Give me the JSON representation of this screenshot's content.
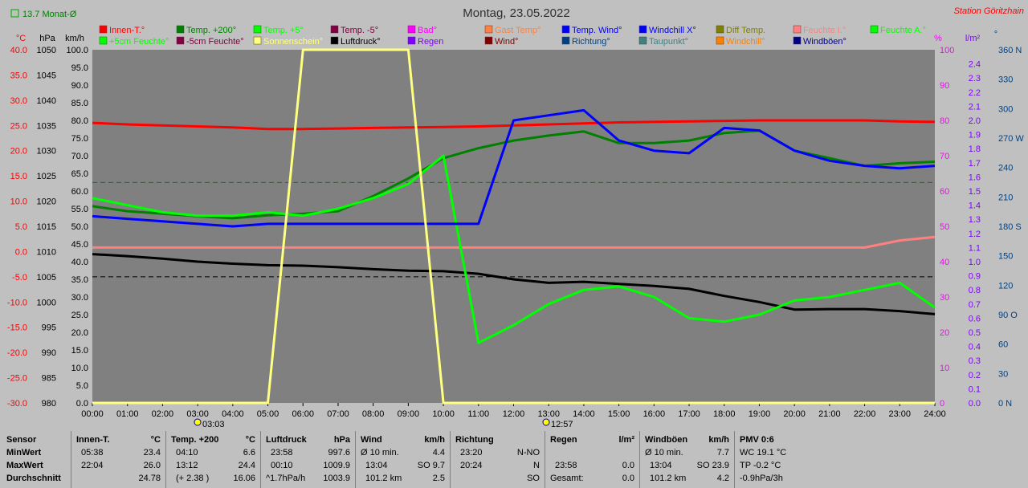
{
  "header": {
    "legend_small": "13.7 Monat-Ø",
    "date": "Montag, 23.05.2022",
    "station": "Station Göritzhain"
  },
  "colors": {
    "bg": "#c0c0c0",
    "plot_bg": "#808080",
    "innen": "#ff0000",
    "temp200": "#008000",
    "temp5": "#00ff00",
    "tempm5": "#800040",
    "bad": "#ff00ff",
    "gast": "#ff8040",
    "tempwind": "#0000ff",
    "windchillx": "#0000ff",
    "diff": "#808000",
    "feuchte_i": "#ff8080",
    "feuchte_a": "#00ff00",
    "sonne": "#ffff80",
    "luftdruck": "#000000",
    "regen": "#8000ff",
    "wind": "#800000",
    "richtung": "#004080",
    "taupunkt": "#408080",
    "windchill": "#ff8000",
    "windboeen": "#000080"
  },
  "legend": [
    {
      "label": "Innen-T.°",
      "color": "#ff0000"
    },
    {
      "label": "Temp. +200°",
      "color": "#008000"
    },
    {
      "label": "Temp. +5°",
      "color": "#00ff00"
    },
    {
      "label": "Temp. -5°",
      "color": "#800040"
    },
    {
      "label": "Bad°",
      "color": "#ff00ff"
    },
    {
      "label": "Gast Temp°",
      "color": "#ff8040"
    },
    {
      "label": "Temp. Wind°",
      "color": "#0000ff"
    },
    {
      "label": "Windchill X°",
      "color": "#0000ff"
    },
    {
      "label": "Diff Temp.",
      "color": "#808000"
    },
    {
      "label": "Feuchte I.°",
      "color": "#ff8080"
    },
    {
      "label": "Feuchte A.°",
      "color": "#00ff00"
    },
    {
      "label": "+5cm Feuchte°",
      "color": "#00ff00"
    },
    {
      "label": "-5cm Feuchte°",
      "color": "#800040"
    },
    {
      "label": "Sonnenschein°",
      "color": "#ffff80"
    },
    {
      "label": "Luftdruck°",
      "color": "#000000"
    },
    {
      "label": "Regen",
      "color": "#8000ff"
    },
    {
      "label": "Wind°",
      "color": "#800000"
    },
    {
      "label": "Richtung°",
      "color": "#004080"
    },
    {
      "label": "Taupunkt°",
      "color": "#408080"
    },
    {
      "label": "Windchill°",
      "color": "#ff8000"
    },
    {
      "label": "Windböen°",
      "color": "#000080"
    }
  ],
  "axes": {
    "temp": {
      "unit": "°C",
      "ticks": [
        "40.0",
        "35.0",
        "30.0",
        "25.0",
        "20.0",
        "15.0",
        "10.0",
        "5.0",
        "0.0",
        "-5.0",
        "-10.0",
        "-15.0",
        "-20.0",
        "-25.0",
        "-30.0"
      ]
    },
    "pressure": {
      "unit": "hPa",
      "ticks": [
        "1050",
        "1045",
        "1040",
        "1035",
        "1030",
        "1025",
        "1020",
        "1015",
        "1010",
        "1005",
        "1000",
        "995",
        "990",
        "985",
        "980"
      ]
    },
    "wind": {
      "unit": "km/h",
      "ticks": [
        "100.0",
        "95.0",
        "90.0",
        "85.0",
        "80.0",
        "75.0",
        "70.0",
        "65.0",
        "60.0",
        "55.0",
        "50.0",
        "45.0",
        "40.0",
        "35.0",
        "30.0",
        "25.0",
        "20.0",
        "15.0",
        "10.0",
        "5.0",
        "0.0"
      ]
    },
    "percent": {
      "unit": "%",
      "ticks": [
        "100",
        "90",
        "80",
        "70",
        "60",
        "50",
        "40",
        "30",
        "20",
        "10",
        "0"
      ]
    },
    "rain": {
      "unit": "l/m²",
      "ticks": [
        "2.4",
        "2.3",
        "2.2",
        "2.1",
        "2.0",
        "1.9",
        "1.8",
        "1.7",
        "1.6",
        "1.5",
        "1.4",
        "1.3",
        "1.2",
        "1.1",
        "1.0",
        "0.9",
        "0.8",
        "0.7",
        "0.6",
        "0.5",
        "0.4",
        "0.3",
        "0.2",
        "0.1",
        "0.0"
      ]
    },
    "direction": {
      "unit": "°",
      "ticks": [
        "360 N",
        "330",
        "300",
        "270 W",
        "240",
        "210",
        "180 S",
        "150",
        "120",
        "90 O",
        "60",
        "30",
        "0 N"
      ]
    },
    "time": {
      "ticks": [
        "00:00",
        "01:00",
        "02:00",
        "03:00",
        "04:00",
        "05:00",
        "06:00",
        "07:00",
        "08:00",
        "09:00",
        "10:00",
        "11:00",
        "12:00",
        "13:00",
        "14:00",
        "15:00",
        "16:00",
        "17:00",
        "18:00",
        "19:00",
        "20:00",
        "21:00",
        "22:00",
        "23:00",
        "24:00"
      ]
    },
    "sunrise": "03:03",
    "noon": "12:57"
  },
  "chart_data": {
    "type": "line",
    "title": "Montag, 23.05.2022",
    "x": [
      0,
      1,
      2,
      3,
      4,
      5,
      6,
      7,
      8,
      9,
      10,
      11,
      12,
      13,
      14,
      15,
      16,
      17,
      18,
      19,
      20,
      21,
      22,
      23,
      24
    ],
    "xlabel": "",
    "ylim_temp": [
      -30,
      40
    ],
    "ylim_pressure": [
      980,
      1050
    ],
    "ylim_wind": [
      0,
      100
    ],
    "ylim_percent": [
      0,
      100
    ],
    "series": [
      {
        "name": "Innen-T.°",
        "axis": "temp",
        "color": "#ff0000",
        "width": 3,
        "values": [
          25.5,
          25.2,
          25.0,
          24.8,
          24.6,
          24.3,
          24.3,
          24.4,
          24.5,
          24.6,
          24.7,
          24.8,
          25.0,
          25.2,
          25.4,
          25.6,
          25.7,
          25.8,
          25.9,
          26.0,
          26.0,
          26.0,
          26.0,
          25.8,
          25.7
        ]
      },
      {
        "name": "Temp. +200°",
        "axis": "temp",
        "color": "#008000",
        "width": 3,
        "values": [
          9.0,
          8.0,
          7.5,
          7.0,
          6.6,
          7.2,
          7.5,
          8.0,
          11.0,
          14.5,
          18.5,
          20.5,
          22.0,
          23.0,
          23.8,
          21.5,
          21.5,
          22.0,
          23.5,
          24.0,
          20.0,
          18.5,
          17.0,
          17.5,
          17.8
        ]
      },
      {
        "name": "Feuchte I.°",
        "axis": "percent",
        "color": "#ff8080",
        "width": 3,
        "values": [
          44,
          44,
          44,
          44,
          44,
          44,
          44,
          44,
          44,
          44,
          44,
          44,
          44,
          44,
          44,
          44,
          44,
          44,
          44,
          44,
          44,
          44,
          44,
          46,
          47
        ]
      },
      {
        "name": "Luftdruck°",
        "axis": "pressure",
        "color": "#000000",
        "width": 3,
        "values": [
          1009.5,
          1009.1,
          1008.6,
          1008.0,
          1007.6,
          1007.3,
          1007.2,
          1006.9,
          1006.5,
          1006.2,
          1006.1,
          1005.6,
          1004.5,
          1003.8,
          1004.0,
          1003.6,
          1003.2,
          1002.6,
          1001.2,
          1000.0,
          998.5,
          998.6,
          998.6,
          998.2,
          997.6
        ]
      },
      {
        "name": "Feuchte A.°",
        "axis": "percent",
        "color": "#00ff00",
        "width": 3,
        "values": [
          58,
          56,
          54,
          53,
          53,
          54,
          53,
          55,
          58,
          62,
          70,
          17,
          22,
          28,
          32,
          33,
          30,
          24,
          23,
          25,
          29,
          30,
          32,
          34,
          27
        ]
      },
      {
        "name": "Temp. Wind°",
        "axis": "temp",
        "color": "#0000ff",
        "width": 3,
        "values": [
          7.0,
          6.5,
          6.0,
          5.5,
          5.0,
          5.5,
          5.5,
          5.5,
          5.5,
          5.5,
          5.5,
          5.5,
          26.0,
          27.0,
          28.0,
          22.0,
          20.0,
          19.5,
          24.5,
          24.0,
          20.0,
          18.0,
          17.0,
          16.5,
          17.0
        ]
      },
      {
        "name": "Sonnenschein°",
        "axis": "percent",
        "color": "#ffff80",
        "width": 3,
        "values": [
          0,
          0,
          0,
          0,
          0,
          0,
          100,
          100,
          100,
          100,
          0,
          0,
          0,
          0,
          0,
          0,
          0,
          0,
          0,
          0,
          0,
          0,
          0,
          0,
          0
        ]
      }
    ]
  },
  "table": {
    "sensor": {
      "h1": "Sensor",
      "r1": "MinWert",
      "r2": "MaxWert",
      "r3": "Durchschnitt"
    },
    "innen": {
      "title": "Innen-T.",
      "unit": "°C",
      "min_time": "05:38",
      "min": "23.4",
      "max_time": "22:04",
      "max": "26.0",
      "avg": "24.78"
    },
    "temp200": {
      "title": "Temp. +200",
      "unit": "°C",
      "min_time": "04:10",
      "min": "6.6",
      "max_time": "13:12",
      "max": "24.4",
      "avg_note": "(+ 2.38 )",
      "avg": "16.06"
    },
    "luftdruck": {
      "title": "Luftdruck",
      "unit": "hPa",
      "min_time": "23:58",
      "min": "997.6",
      "max_time": "00:10",
      "max": "1009.9",
      "avg_note": "^1.7hPa/h",
      "avg": "1003.9"
    },
    "wind": {
      "title": "Wind",
      "unit": "km/h",
      "min_time": "Ø 10 min.",
      "min": "4.4",
      "max_time": "13:04",
      "max": "SO 9.7",
      "avg_note": "101.2 km",
      "avg": "2.5"
    },
    "richtung": {
      "title": "Richtung",
      "min_time": "23:20",
      "min": "N-NO",
      "max_time": "20:24",
      "max": "N",
      "avg": "SO"
    },
    "regen": {
      "title": "Regen",
      "unit": "l/m²",
      "max_time": "23:58",
      "max": "0.0",
      "avg_note": "Gesamt:",
      "avg": "0.0"
    },
    "windboeen": {
      "title": "Windböen",
      "unit": "km/h",
      "min_time": "Ø 10 min.",
      "min": "7.7",
      "max_time": "13:04",
      "max": "SO 23.9",
      "avg_note": "101.2 km",
      "avg": "4.2"
    },
    "pmv": {
      "title": "PMV 0:6",
      "r1": "WC 19.1 °C",
      "r2": "TP -0.2 °C",
      "r3": "-0.9hPa/3h"
    }
  }
}
